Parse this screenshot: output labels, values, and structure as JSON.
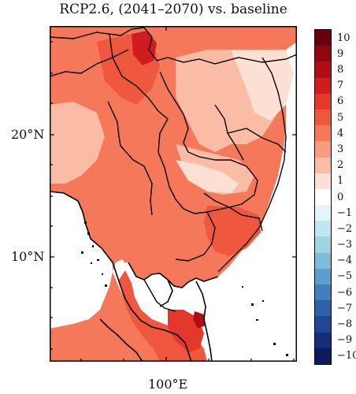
{
  "title": "RCP2.6, (2041–2070) vs. baseline",
  "axes": {
    "y_ticks": [
      {
        "label": "20°N",
        "lat": 20
      },
      {
        "label": "10°N",
        "lat": 10
      }
    ],
    "x_ticks": [
      {
        "label": "100°E",
        "lon": 100
      }
    ]
  },
  "colorbar": {
    "labels": [
      "10",
      "9",
      "8",
      "7",
      "6",
      "5",
      "4",
      "3",
      "2",
      "1",
      "0",
      "−1",
      "−2",
      "−3",
      "−4",
      "−5",
      "−6",
      "−7",
      "−8",
      "−9",
      "−10"
    ],
    "colors": [
      "#67000d",
      "#8b0711",
      "#b00e17",
      "#cf1d1f",
      "#e4382c",
      "#f0573f",
      "#f6785a",
      "#f99b80",
      "#fbbca6",
      "#fde0d4",
      "#ffffff",
      "#e6f4f7",
      "#c2e6ee",
      "#9fd4e3",
      "#7ebcd9",
      "#5d9fcc",
      "#437fbb",
      "#2f61a7",
      "#214693",
      "#152e78",
      "#0b1c5c"
    ]
  }
}
